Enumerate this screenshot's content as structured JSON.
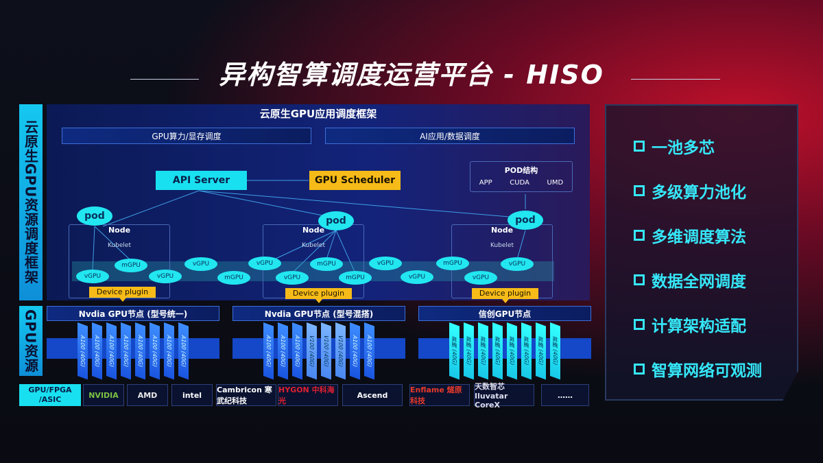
{
  "title": "异构智算调度运营平台 - HISO",
  "framework": {
    "side_label": "云原生GPU资源调度框架",
    "header": "云原生GPU应用调度框架",
    "bars": [
      "GPU算力/显存调度",
      "AI应用/数据调度"
    ],
    "api_server": "API Server",
    "gpu_scheduler": "GPU Scheduler",
    "pod_structure": {
      "title": "POD结构",
      "items": [
        "APP",
        "CUDA",
        "UMD"
      ]
    },
    "pod_label": "pod",
    "node_label": "Node",
    "kubelet_label": "Kubelet",
    "device_plugin": "Device plugin",
    "gpu_units": [
      "vGPU",
      "mGPU",
      "vGPU",
      "vGPU",
      "mGPU",
      "vGPU",
      "vGPU",
      "mGPU",
      "mGPU",
      "vGPU",
      "vGPU",
      "mGPU",
      "vGPU",
      "vGPU"
    ]
  },
  "resources": {
    "side_label": "GPU资源",
    "groups": [
      {
        "title": "Nvdia GPU节点 (型号统一)",
        "cards": [
          "A100 (40G)",
          "A100 (40G)",
          "A100 (40G)",
          "A100 (40G)",
          "A100 (40G)",
          "A100 (40G)",
          "A100 (40G)",
          "A100 (40G)"
        ]
      },
      {
        "title": "Nvdia GPU节点 (型号混搭)",
        "cards": [
          "A100 (40G)",
          "A100 (40G)",
          "A100 (40G)",
          "V100 (40G)",
          "V100 (40G)",
          "V100 (40G)",
          "A100 (40G)",
          "A100 (40G)"
        ]
      },
      {
        "title": "信创GPU节点",
        "cards": [
          "昇腾 (40G)",
          "昇腾 (40G)",
          "昇腾 (40G)",
          "昇腾 (40G)",
          "昇腾 (40G)",
          "昇腾 (40G)",
          "昇腾 (40G)",
          "昇腾 (40G)"
        ]
      }
    ]
  },
  "vendors": {
    "label": "GPU/FPGA /ASIC",
    "items": [
      "NVIDIA",
      "AMD",
      "intel",
      "Cambricon 寒武纪科技",
      "HYGON 中科海光",
      "Ascend",
      "Enflame 燧原科技",
      "天数智芯 Iluvatar CoreX",
      "……"
    ]
  },
  "features": [
    "一池多芯",
    "多级算力池化",
    "多维调度算法",
    "数据全网调度",
    "计算架构适配",
    "智算网络可观测"
  ],
  "colors": {
    "cyan": "#22e6f0",
    "yellow": "#f6bb18",
    "panel": "#13237a",
    "accent_red": "#c0102a"
  }
}
